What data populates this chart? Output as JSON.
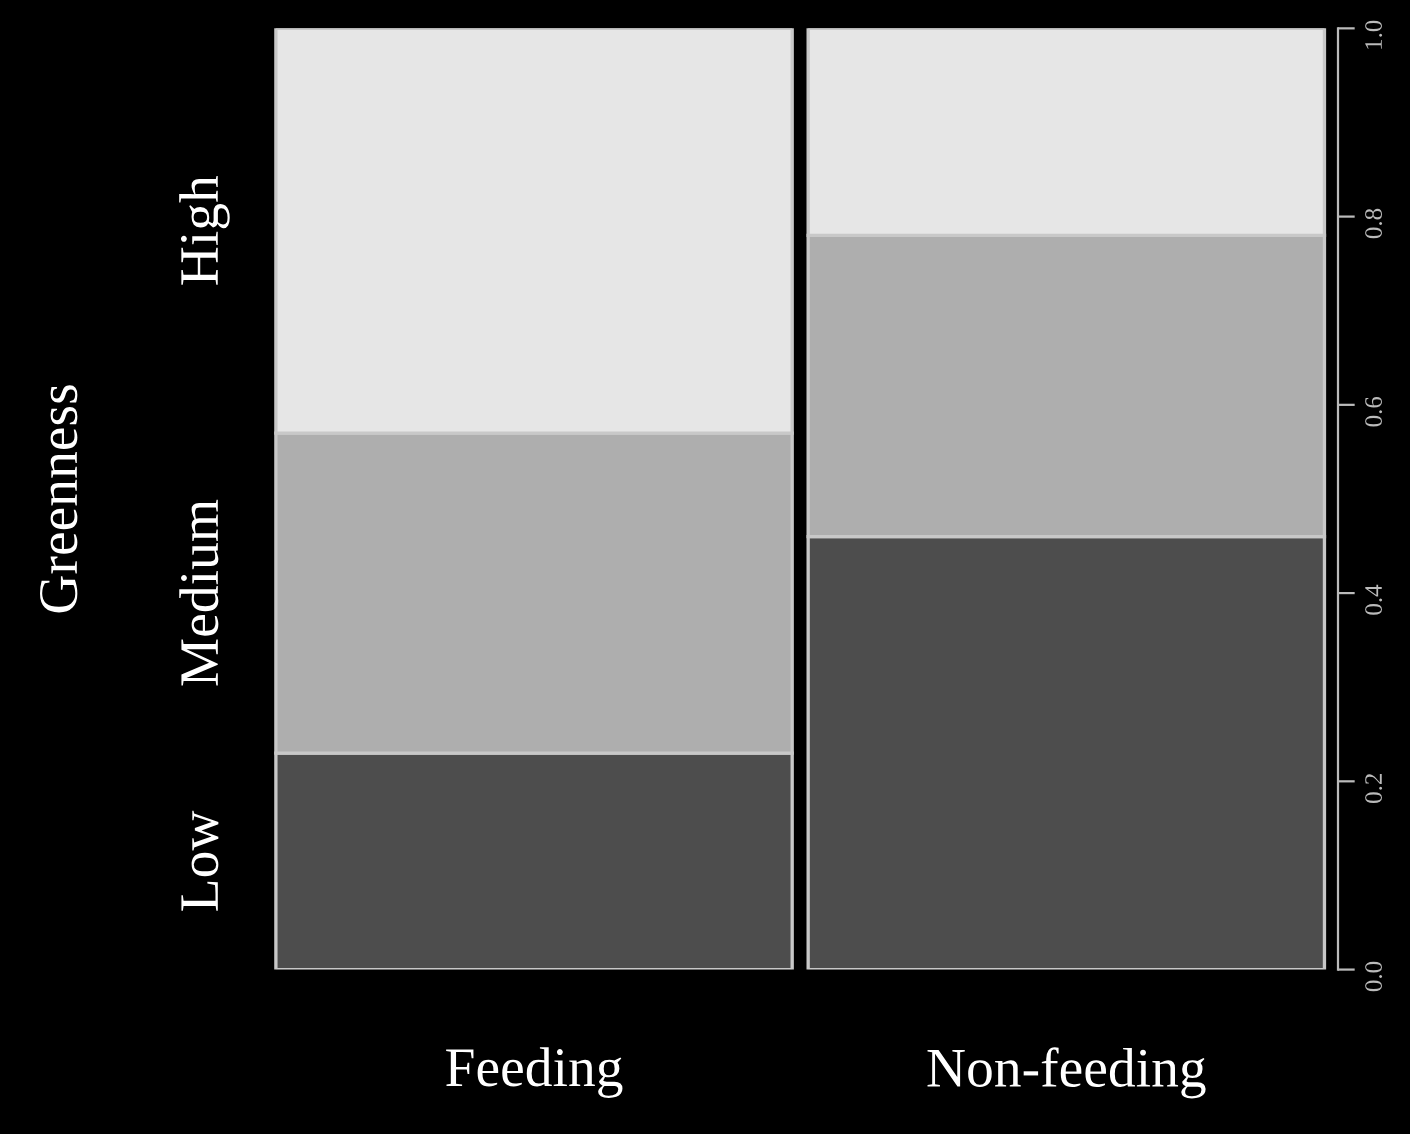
{
  "chart_data": {
    "type": "bar",
    "stacked": true,
    "ylabel": "Greenness",
    "categories": [
      "Feeding",
      "Non-feeding"
    ],
    "series": [
      {
        "name": "Low",
        "color": "#4d4d4d",
        "values": [
          0.23,
          0.46
        ]
      },
      {
        "name": "Medium",
        "color": "#aeaeae",
        "values": [
          0.34,
          0.32
        ]
      },
      {
        "name": "High",
        "color": "#e6e6e6",
        "values": [
          0.43,
          0.22
        ]
      }
    ],
    "ylim": [
      0,
      1
    ],
    "yticks": [
      {
        "value": 0,
        "label": "0.0"
      },
      0.2,
      0.4,
      0.6,
      0.8,
      {
        "value": 1,
        "label": "1.0"
      }
    ],
    "grid": false,
    "legend": false
  }
}
